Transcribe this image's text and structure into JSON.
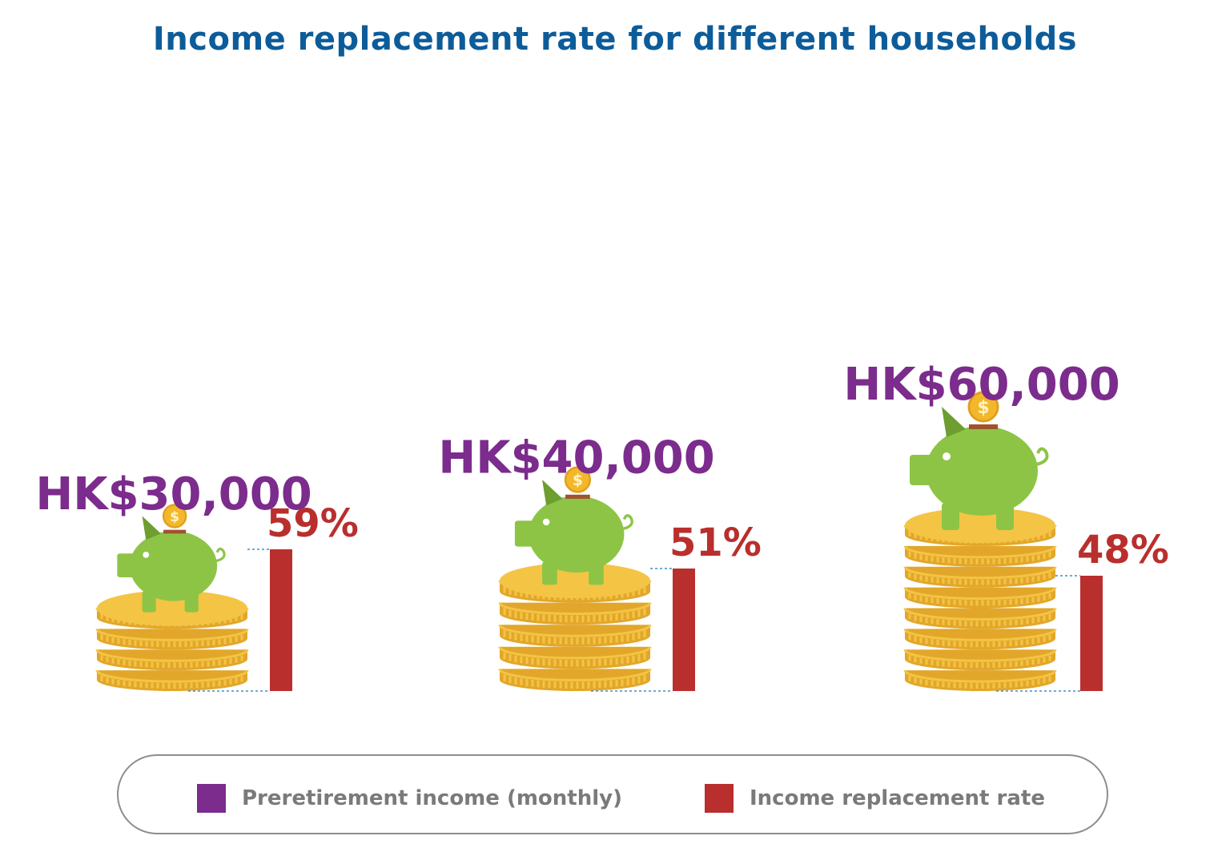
{
  "title": "Income replacement rate for different households",
  "colors": {
    "title": "#0d5c9a",
    "income": "#7b2c8c",
    "rate": "#b92f2d",
    "coin": "#f4c445",
    "coin_edge": "#e2a72a",
    "pig": "#8dc446",
    "pig_dark": "#6e9e2f",
    "leader": "#3f8fc4",
    "legend_text": "#7a7a7a"
  },
  "chart_data": {
    "type": "bar",
    "categories": [
      "HK$30,000",
      "HK$40,000",
      "HK$60,000"
    ],
    "series": [
      {
        "name": "Preretirement income (monthly)",
        "values": [
          30000,
          40000,
          60000
        ]
      },
      {
        "name": "Income replacement rate",
        "values": [
          59,
          51,
          48
        ]
      }
    ],
    "income_labels": [
      "HK$30,000",
      "HK$40,000",
      "HK$60,000"
    ],
    "rate_labels": [
      "59%",
      "51%",
      "48%"
    ],
    "rate_scale_max": 100,
    "legend": "bottom"
  },
  "legend": {
    "items": [
      {
        "label": "Preretirement income (monthly)",
        "icon": "purple-square"
      },
      {
        "label": "Income replacement rate",
        "icon": "red-square"
      }
    ]
  },
  "icons": {
    "pig": "piggy-bank-icon",
    "coin": "dollar-coin-icon"
  }
}
